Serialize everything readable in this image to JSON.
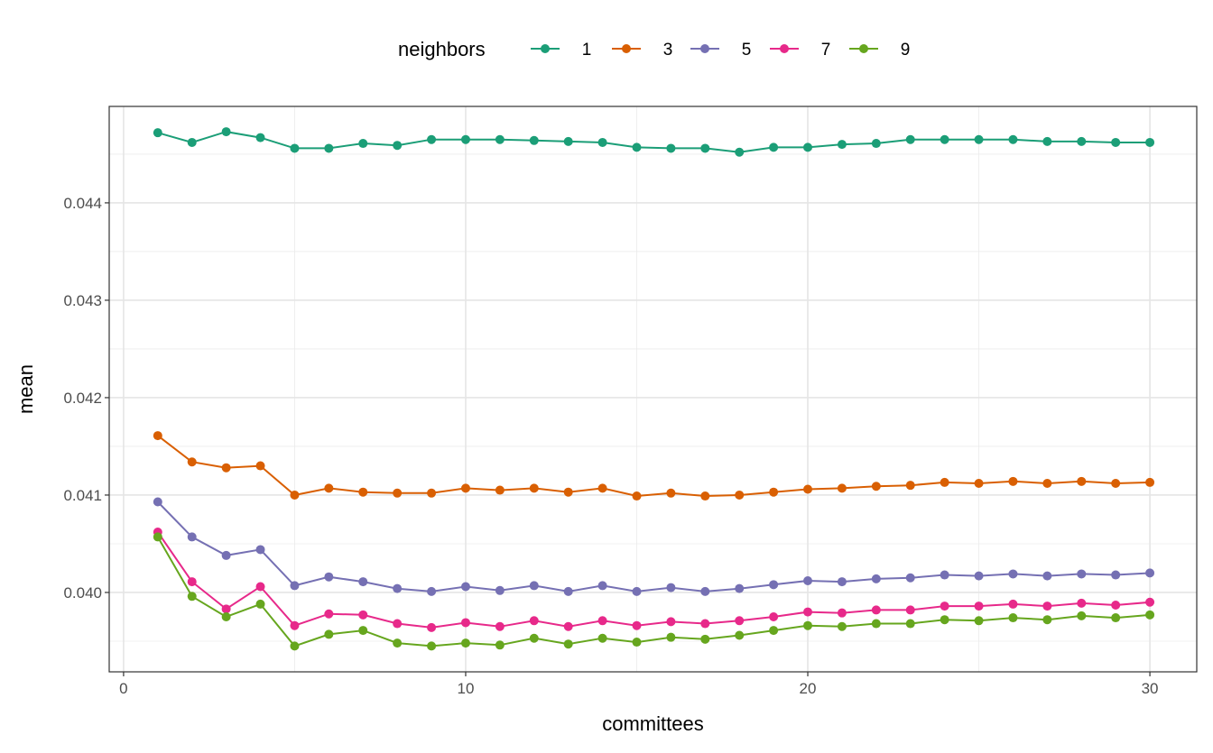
{
  "chart_data": {
    "type": "line",
    "title": "",
    "xlabel": "committees",
    "ylabel": "mean",
    "xlim": [
      -0.42,
      31.37
    ],
    "ylim": [
      0.039185,
      0.04499
    ],
    "x_ticks": [
      0,
      10,
      20,
      30
    ],
    "x_tick_labels": [
      "0",
      "10",
      "20",
      "30"
    ],
    "y_ticks": [
      0.04,
      0.041,
      0.042,
      0.043,
      0.044
    ],
    "y_tick_labels": [
      "0.040",
      "0.041",
      "0.042",
      "0.043",
      "0.044"
    ],
    "grid": true,
    "legend": {
      "title": "neighbors",
      "placement": "top"
    },
    "x": [
      1,
      2,
      3,
      4,
      5,
      6,
      7,
      8,
      9,
      10,
      11,
      12,
      13,
      14,
      15,
      16,
      17,
      18,
      19,
      20,
      21,
      22,
      23,
      24,
      25,
      26,
      27,
      28,
      29,
      30
    ],
    "series": [
      {
        "name": "1",
        "color": "#1B9E77",
        "values": [
          0.04472,
          0.04462,
          0.04473,
          0.04467,
          0.04456,
          0.04456,
          0.04461,
          0.04459,
          0.04465,
          0.04465,
          0.04465,
          0.04464,
          0.04463,
          0.04462,
          0.04457,
          0.04456,
          0.04456,
          0.04452,
          0.04457,
          0.04457,
          0.0446,
          0.04461,
          0.04465,
          0.04465,
          0.04465,
          0.04465,
          0.04463,
          0.04463,
          0.04462,
          0.04462
        ]
      },
      {
        "name": "3",
        "color": "#D95F02",
        "values": [
          0.04161,
          0.04134,
          0.04128,
          0.0413,
          0.041,
          0.04107,
          0.04103,
          0.04102,
          0.04102,
          0.04107,
          0.04105,
          0.04107,
          0.04103,
          0.04107,
          0.04099,
          0.04102,
          0.04099,
          0.041,
          0.04103,
          0.04106,
          0.04107,
          0.04109,
          0.0411,
          0.04113,
          0.04112,
          0.04114,
          0.04112,
          0.04114,
          0.04112,
          0.04113
        ]
      },
      {
        "name": "5",
        "color": "#7570B3",
        "values": [
          0.04093,
          0.04057,
          0.04038,
          0.04044,
          0.04007,
          0.04016,
          0.04011,
          0.04004,
          0.04001,
          0.04006,
          0.04002,
          0.04007,
          0.04001,
          0.04007,
          0.04001,
          0.04005,
          0.04001,
          0.04004,
          0.04008,
          0.04012,
          0.04011,
          0.04014,
          0.04015,
          0.04018,
          0.04017,
          0.04019,
          0.04017,
          0.04019,
          0.04018,
          0.0402
        ]
      },
      {
        "name": "7",
        "color": "#E7298A",
        "values": [
          0.04062,
          0.04011,
          0.03983,
          0.04006,
          0.03966,
          0.03978,
          0.03977,
          0.03968,
          0.03964,
          0.03969,
          0.03965,
          0.03971,
          0.03965,
          0.03971,
          0.03966,
          0.0397,
          0.03968,
          0.03971,
          0.03975,
          0.0398,
          0.03979,
          0.03982,
          0.03982,
          0.03986,
          0.03986,
          0.03988,
          0.03986,
          0.03989,
          0.03987,
          0.0399
        ]
      },
      {
        "name": "9",
        "color": "#66A61E",
        "values": [
          0.04057,
          0.03996,
          0.03975,
          0.03988,
          0.03945,
          0.03957,
          0.03961,
          0.03948,
          0.03945,
          0.03948,
          0.03946,
          0.03953,
          0.03947,
          0.03953,
          0.03949,
          0.03954,
          0.03952,
          0.03956,
          0.03961,
          0.03966,
          0.03965,
          0.03968,
          0.03968,
          0.03972,
          0.03971,
          0.03974,
          0.03972,
          0.03976,
          0.03974,
          0.03977
        ]
      }
    ]
  }
}
